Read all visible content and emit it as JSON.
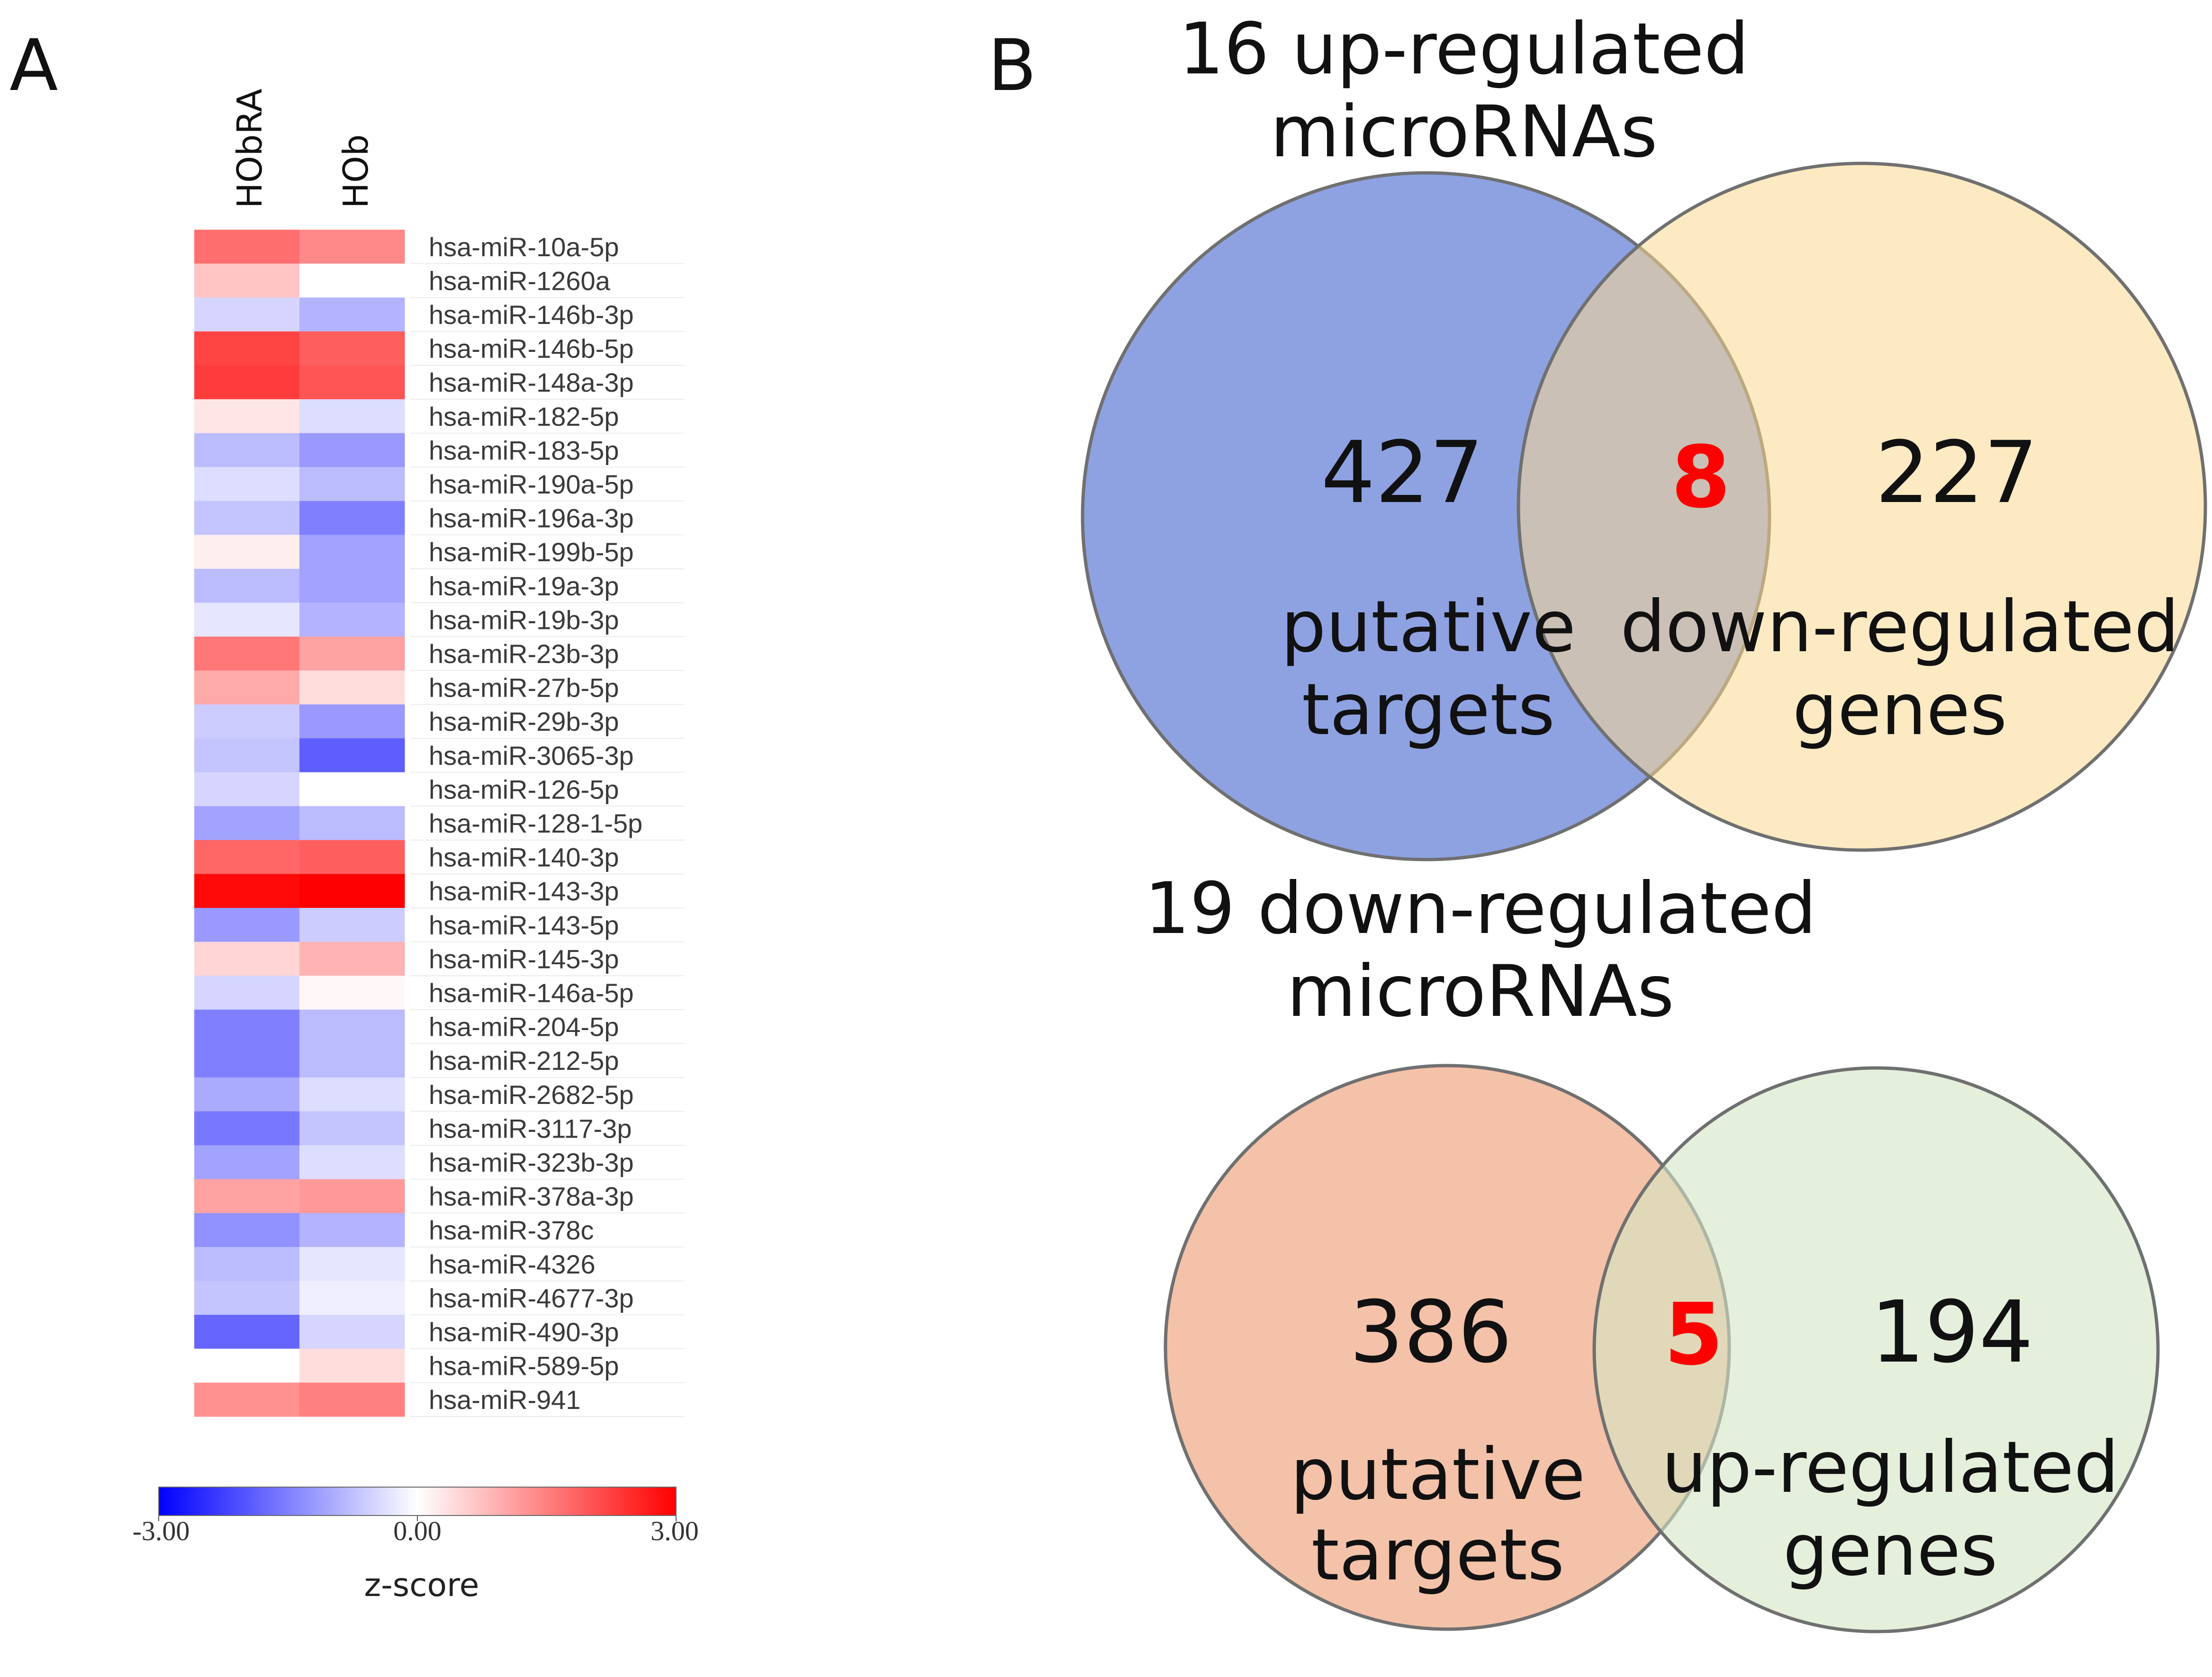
{
  "panels": {
    "a": "A",
    "b": "B"
  },
  "chart_data": [
    {
      "type": "heatmap",
      "columns": [
        "HObRA",
        "HOb"
      ],
      "rows": [
        {
          "label": "hsa-miR-10a-5p",
          "values": [
            1.7,
            1.4
          ]
        },
        {
          "label": "hsa-miR-1260a",
          "values": [
            0.7,
            0.0
          ]
        },
        {
          "label": "hsa-miR-146b-3p",
          "values": [
            -0.5,
            -0.9
          ]
        },
        {
          "label": "hsa-miR-146b-5p",
          "values": [
            2.2,
            1.9
          ]
        },
        {
          "label": "hsa-miR-148a-3p",
          "values": [
            2.3,
            2.0
          ]
        },
        {
          "label": "hsa-miR-182-5p",
          "values": [
            0.3,
            -0.4
          ]
        },
        {
          "label": "hsa-miR-183-5p",
          "values": [
            -0.8,
            -1.2
          ]
        },
        {
          "label": "hsa-miR-190a-5p",
          "values": [
            -0.4,
            -0.8
          ]
        },
        {
          "label": "hsa-miR-196a-3p",
          "values": [
            -0.7,
            -1.5
          ]
        },
        {
          "label": "hsa-miR-199b-5p",
          "values": [
            0.2,
            -1.1
          ]
        },
        {
          "label": "hsa-miR-19a-3p",
          "values": [
            -0.8,
            -1.1
          ]
        },
        {
          "label": "hsa-miR-19b-3p",
          "values": [
            -0.3,
            -0.9
          ]
        },
        {
          "label": "hsa-miR-23b-3p",
          "values": [
            1.6,
            1.1
          ]
        },
        {
          "label": "hsa-miR-27b-5p",
          "values": [
            1.0,
            0.4
          ]
        },
        {
          "label": "hsa-miR-29b-3p",
          "values": [
            -0.6,
            -1.2
          ]
        },
        {
          "label": "hsa-miR-3065-3p",
          "values": [
            -0.7,
            -1.9
          ]
        },
        {
          "label": "hsa-miR-126-5p",
          "values": [
            -0.5,
            0.0
          ]
        },
        {
          "label": "hsa-miR-128-1-5p",
          "values": [
            -1.1,
            -0.8
          ]
        },
        {
          "label": "hsa-miR-140-3p",
          "values": [
            1.8,
            1.9
          ]
        },
        {
          "label": "hsa-miR-143-3p",
          "values": [
            2.9,
            3.0
          ]
        },
        {
          "label": "hsa-miR-143-5p",
          "values": [
            -1.2,
            -0.6
          ]
        },
        {
          "label": "hsa-miR-145-3p",
          "values": [
            0.5,
            0.9
          ]
        },
        {
          "label": "hsa-miR-146a-5p",
          "values": [
            -0.5,
            0.1
          ]
        },
        {
          "label": "hsa-miR-204-5p",
          "values": [
            -1.5,
            -0.8
          ]
        },
        {
          "label": "hsa-miR-212-5p",
          "values": [
            -1.5,
            -0.8
          ]
        },
        {
          "label": "hsa-miR-2682-5p",
          "values": [
            -1.0,
            -0.4
          ]
        },
        {
          "label": "hsa-miR-3117-3p",
          "values": [
            -1.6,
            -0.7
          ]
        },
        {
          "label": "hsa-miR-323b-3p",
          "values": [
            -1.1,
            -0.4
          ]
        },
        {
          "label": "hsa-miR-378a-3p",
          "values": [
            1.1,
            1.2
          ]
        },
        {
          "label": "hsa-miR-378c",
          "values": [
            -1.3,
            -0.9
          ]
        },
        {
          "label": "hsa-miR-4326",
          "values": [
            -0.8,
            -0.3
          ]
        },
        {
          "label": "hsa-miR-4677-3p",
          "values": [
            -0.7,
            -0.2
          ]
        },
        {
          "label": "hsa-miR-490-3p",
          "values": [
            -1.8,
            -0.5
          ]
        },
        {
          "label": "hsa-miR-589-5p",
          "values": [
            0.0,
            0.4
          ]
        },
        {
          "label": "hsa-miR-941",
          "values": [
            1.3,
            1.5
          ]
        }
      ],
      "colorbar": {
        "min": -3.0,
        "max": 3.0,
        "ticks": [
          "-3.00",
          "0.00",
          "3.00"
        ],
        "label": "z-score",
        "colors": {
          "low": "#0000ff",
          "mid": "#ffffff",
          "high": "#ff0000"
        }
      }
    },
    {
      "type": "venn",
      "title_line1": "16 up-regulated",
      "title_line2": "microRNAs",
      "sets": [
        {
          "count": "427",
          "line1": "putative",
          "line2": "targets",
          "color": "#8ea2e2"
        },
        {
          "count": "227",
          "line1": "down-regulated",
          "line2": "genes",
          "color": "#fbd98f"
        }
      ],
      "overlap": {
        "count": "8",
        "color": "#ff0000"
      }
    },
    {
      "type": "venn",
      "title_line1": "19 down-regulated",
      "title_line2": "microRNAs",
      "sets": [
        {
          "count": "386",
          "line1": "putative",
          "line2": "targets",
          "color": "#f4c2a8"
        },
        {
          "count": "194",
          "line1": "up-regulated",
          "line2": "genes",
          "color": "#d4e6c4"
        }
      ],
      "overlap": {
        "count": "5",
        "color": "#ff0000"
      }
    }
  ]
}
